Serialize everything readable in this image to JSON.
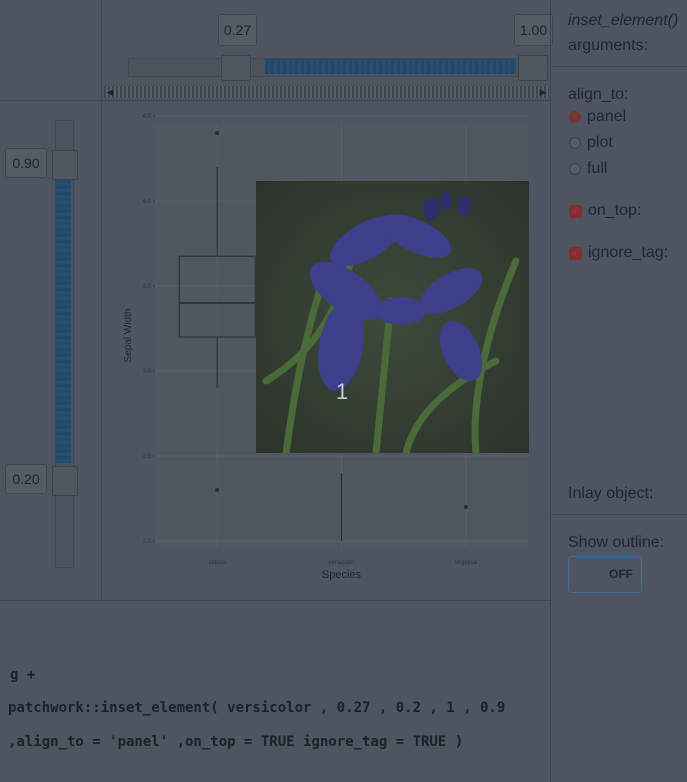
{
  "hslider": {
    "low_label": "0.27",
    "high_label": "1.00",
    "low": 0.27,
    "high": 1.0
  },
  "vslider": {
    "high_label": "0.90",
    "low_label": "0.20",
    "high": 0.9,
    "low": 0.2
  },
  "side": {
    "title": "inset_element()",
    "subtitle": "arguments:",
    "align_to_label": "align_to:",
    "options": [
      "panel",
      "plot",
      "full"
    ],
    "selected": "panel",
    "on_top_label": "on_top:",
    "ignore_tag_label": "ignore_tag:",
    "inlay_label": "Inlay object:",
    "outline_label": "Show outline:",
    "toggle_state": "OFF"
  },
  "code": {
    "line1": "g +",
    "line2": "patchwork::inset_element( versicolor , 0.27 , 0.2 , 1 , 0.9",
    "line3": ",align_to = 'panel' ,on_top = TRUE ignore_tag = TRUE )"
  },
  "inset": {
    "label": "1"
  },
  "chart_data": {
    "type": "box",
    "categories": [
      "setosa",
      "versicolor",
      "virginica"
    ],
    "xlabel": "Species",
    "ylabel": "Sepal Width",
    "ylim": [
      2.0,
      4.5
    ],
    "yticks": [
      "2.0",
      "2.5",
      "3.0",
      "3.5",
      "4.0",
      "4.5"
    ],
    "boxes": [
      {
        "name": "setosa",
        "whisker_low": 2.9,
        "q1": 3.2,
        "median": 3.4,
        "q3": 3.675,
        "whisker_high": 4.2,
        "outliers": [
          4.4,
          2.3
        ]
      },
      {
        "name": "versicolor",
        "whisker_low": 2.0,
        "whisker_high": 2.4,
        "outliers": []
      },
      {
        "name": "virginica",
        "outliers": [
          2.2
        ]
      }
    ]
  }
}
